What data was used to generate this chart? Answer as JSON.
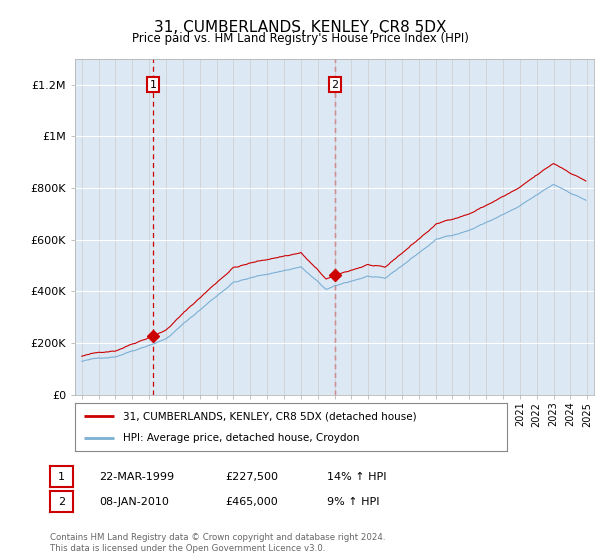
{
  "title": "31, CUMBERLANDS, KENLEY, CR8 5DX",
  "subtitle": "Price paid vs. HM Land Registry's House Price Index (HPI)",
  "legend_label_red": "31, CUMBERLANDS, KENLEY, CR8 5DX (detached house)",
  "legend_label_blue": "HPI: Average price, detached house, Croydon",
  "annotation1_label": "1",
  "annotation1_date": "22-MAR-1999",
  "annotation1_price": "£227,500",
  "annotation1_hpi": "14% ↑ HPI",
  "annotation2_label": "2",
  "annotation2_date": "08-JAN-2010",
  "annotation2_price": "£465,000",
  "annotation2_hpi": "9% ↑ HPI",
  "footnote": "Contains HM Land Registry data © Crown copyright and database right 2024.\nThis data is licensed under the Open Government Licence v3.0.",
  "background_color": "#dce9f5",
  "ylim": [
    0,
    1300000
  ],
  "yticks": [
    0,
    200000,
    400000,
    600000,
    800000,
    1000000,
    1200000
  ],
  "ytick_labels": [
    "£0",
    "£200K",
    "£400K",
    "£600K",
    "£800K",
    "£1M",
    "£1.2M"
  ],
  "red_color": "#cc0000",
  "blue_color": "#7bafd4",
  "vline_color": "#cc0000",
  "annotation_box_color": "#cc0000",
  "purchase1_x": 1999.22,
  "purchase1_y": 227500,
  "purchase2_x": 2010.03,
  "purchase2_y": 465000,
  "xmin": 1995.0,
  "xmax": 2025.0
}
